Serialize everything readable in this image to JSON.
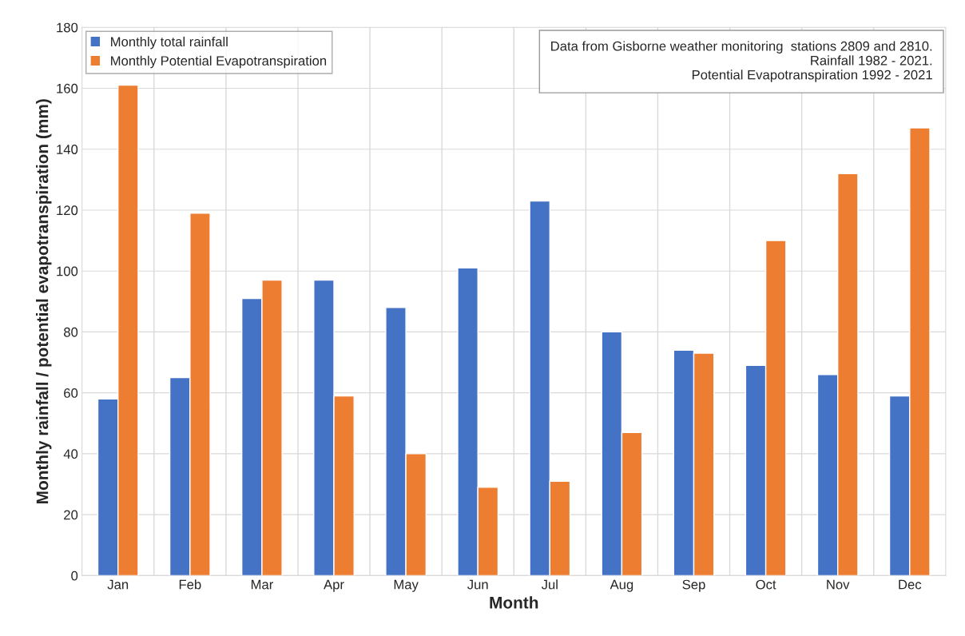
{
  "chart_data": {
    "type": "bar",
    "xlabel": "Month",
    "ylabel": "Monthly rainfall / potential evapotranspiration (mm)",
    "categories": [
      "Jan",
      "Feb",
      "Mar",
      "Apr",
      "May",
      "Jun",
      "Jul",
      "Aug",
      "Sep",
      "Oct",
      "Nov",
      "Dec"
    ],
    "series": [
      {
        "name": "Monthly total rainfall",
        "color": "#4472c4",
        "values": [
          58,
          65,
          91,
          97,
          88,
          101,
          123,
          80,
          74,
          69,
          66,
          59
        ]
      },
      {
        "name": "Monthly Potential Evapotranspiration",
        "color": "#ed7d31",
        "values": [
          161,
          119,
          97,
          59,
          40,
          29,
          31,
          47,
          73,
          110,
          132,
          147
        ]
      }
    ],
    "ylim": [
      0,
      180
    ],
    "yticks": [
      0,
      20,
      40,
      60,
      80,
      100,
      120,
      140,
      160,
      180
    ],
    "grid": true,
    "legend": "top left",
    "annotations": [
      "Data from Gisborne weather monitoring  stations 2809 and 2810.",
      "Rainfall 1982 - 2021.",
      "Potential Evapotranspiration 1992 - 2021"
    ]
  }
}
